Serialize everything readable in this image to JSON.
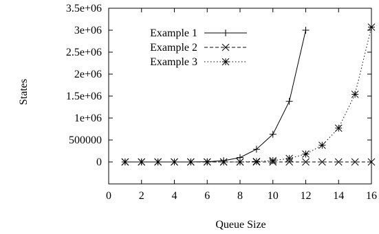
{
  "chart_data": {
    "type": "line",
    "title": "",
    "xlabel": "Queue Size",
    "ylabel": "States",
    "xlim": [
      0,
      16
    ],
    "ylim": [
      -500000,
      3500000
    ],
    "xticks": [
      0,
      2,
      4,
      6,
      8,
      10,
      12,
      14,
      16
    ],
    "xtick_labels": [
      "0",
      "2",
      "4",
      "6",
      "8",
      "10",
      "12",
      "14",
      "16"
    ],
    "yticks": [
      0,
      500000,
      1000000,
      1500000,
      2000000,
      2500000,
      3000000,
      3500000
    ],
    "ytick_labels": [
      "0",
      "500000",
      "1e+06",
      "1.5e+06",
      "2e+06",
      "2.5e+06",
      "3e+06",
      "3.5e+06"
    ],
    "grid": false,
    "legend_position": "top-left",
    "series": [
      {
        "name": "Example 1",
        "line": "solid",
        "marker": "plus",
        "x": [
          1,
          2,
          3,
          4,
          5,
          6,
          7,
          8,
          9,
          10,
          11,
          12
        ],
        "y": [
          0,
          0,
          0,
          0,
          0,
          5000,
          30000,
          100000,
          290000,
          630000,
          1380000,
          3000000
        ]
      },
      {
        "name": "Example 2",
        "line": "dashed",
        "marker": "cross",
        "x": [
          1,
          2,
          3,
          4,
          5,
          6,
          7,
          8,
          9,
          10,
          11,
          12,
          13,
          14,
          15,
          16
        ],
        "y": [
          0,
          0,
          0,
          0,
          0,
          0,
          0,
          0,
          0,
          0,
          0,
          0,
          0,
          0,
          0,
          0
        ]
      },
      {
        "name": "Example 3",
        "line": "dotted",
        "marker": "star",
        "x": [
          1,
          2,
          3,
          4,
          5,
          6,
          7,
          8,
          9,
          10,
          11,
          12,
          13,
          14,
          15,
          16
        ],
        "y": [
          0,
          0,
          0,
          0,
          0,
          0,
          0,
          0,
          10000,
          30000,
          80000,
          180000,
          380000,
          770000,
          1540000,
          3070000
        ]
      }
    ]
  }
}
